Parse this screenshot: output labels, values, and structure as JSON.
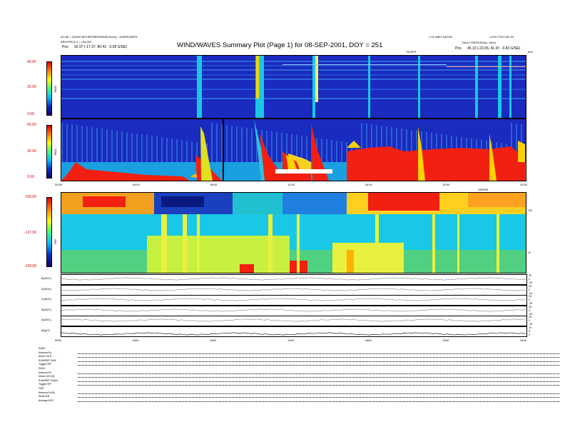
{
  "header": {
    "title": "WIND/WAVES Summary Plot (Page 1) for 08-SEP-2001, DOY = 251",
    "left_line1": "AO.80 = 2(2000 BPC/BPS/BPS/BNS(%cnts) - AYBRFQ/BPS",
    "left_line2": "ARG/FREQ 3 = 136.00C",
    "left_pos_label": "Pos",
    "left_pos_value": "92.97 (-17.37, 80.42, -0.08 G/SE)",
    "right_line1": "1.10 WBO DATOD",
    "right_line2": "DAILY WBODS(N(s, 2sec)",
    "right_pos_label": "Pos",
    "right_pos_value": "45.10 (-23.06, 41.47, -0.83 G/SE)",
    "right_top": "LOSS TOG Info SC",
    "tnr_label": "TDS/FR",
    "khz_label": "kHz",
    "rad1_top_label": "DWR3E"
  },
  "rad2": {
    "label": "RAD2",
    "ticks": [
      "40.00",
      "20.00",
      "0.00"
    ],
    "colorbar_top": "40.00"
  },
  "rad1": {
    "label": "RAD1",
    "ticks": [
      "50.00",
      "30.00",
      "0.00"
    ],
    "colorbar_top": "50.00"
  },
  "tnr": {
    "label": "TNR",
    "ticks": [
      "-105.00",
      "-127.50",
      "-150.00"
    ],
    "right_ticks": [
      "100",
      "10"
    ]
  },
  "time_axis": {
    "ticks": [
      "00:00",
      "04:00",
      "08:00",
      "12:00",
      "16:00",
      "20:00",
      "24:00"
    ],
    "lower_ticks": [
      "0000",
      "0400",
      "0800",
      "1200",
      "1600",
      "2000",
      "2400"
    ]
  },
  "line_panels": [
    {
      "label": "B(ADC)",
      "right": [
        "-25",
        "0",
        "25"
      ]
    },
    {
      "label": "D(ADC)",
      "right": [
        "-25",
        "0",
        "25"
      ]
    },
    {
      "label": "C(ADC)",
      "right": [
        "-25",
        "0",
        "25"
      ]
    },
    {
      "label": "B(ADC)",
      "right": [
        "-25",
        "0",
        "25"
      ]
    },
    {
      "label": "A(ADC)",
      "right": [
        "-25",
        "0",
        "25"
      ]
    },
    {
      "label": "|B|(nT)",
      "right": [
        "0",
        "5",
        "10"
      ]
    }
  ],
  "status": {
    "rad2_header": "RAD2",
    "rad2_rows": [
      "Antenna  Ey",
      "Mode  LIN 8",
      "SUM/SEP  SUM",
      "Toggle  OFF"
    ],
    "rad1_header": "RAD1",
    "rad1_rows": [
      "Antenna  Ex",
      "Mode  LOG (8)",
      "SUM/SEP  SUMA",
      "Toggle  OFF"
    ],
    "tnr_header": "TNR",
    "tnr_rows": [
      "Antenna  Ex/Ey",
      "Mode  A/B",
      "Average  ADC"
    ]
  },
  "chart_data": [
    {
      "type": "heatmap",
      "title": "",
      "ylabel": "RAD2",
      "ylim": [
        0,
        40
      ],
      "xlim": [
        "00:00",
        "24:00"
      ]
    },
    {
      "type": "heatmap",
      "title": "",
      "ylabel": "RAD1",
      "ylim": [
        0,
        50
      ],
      "xlim": [
        "00:00",
        "24:00"
      ]
    },
    {
      "type": "heatmap",
      "title": "",
      "ylabel": "TNR",
      "ylim": [
        -150,
        -105
      ],
      "xlim": [
        "00:00",
        "24:00"
      ]
    }
  ],
  "colors": {
    "low": "#1a2bbf",
    "mid": "#18c8e6",
    "high": "#f22010",
    "red_text": "#c00000"
  }
}
